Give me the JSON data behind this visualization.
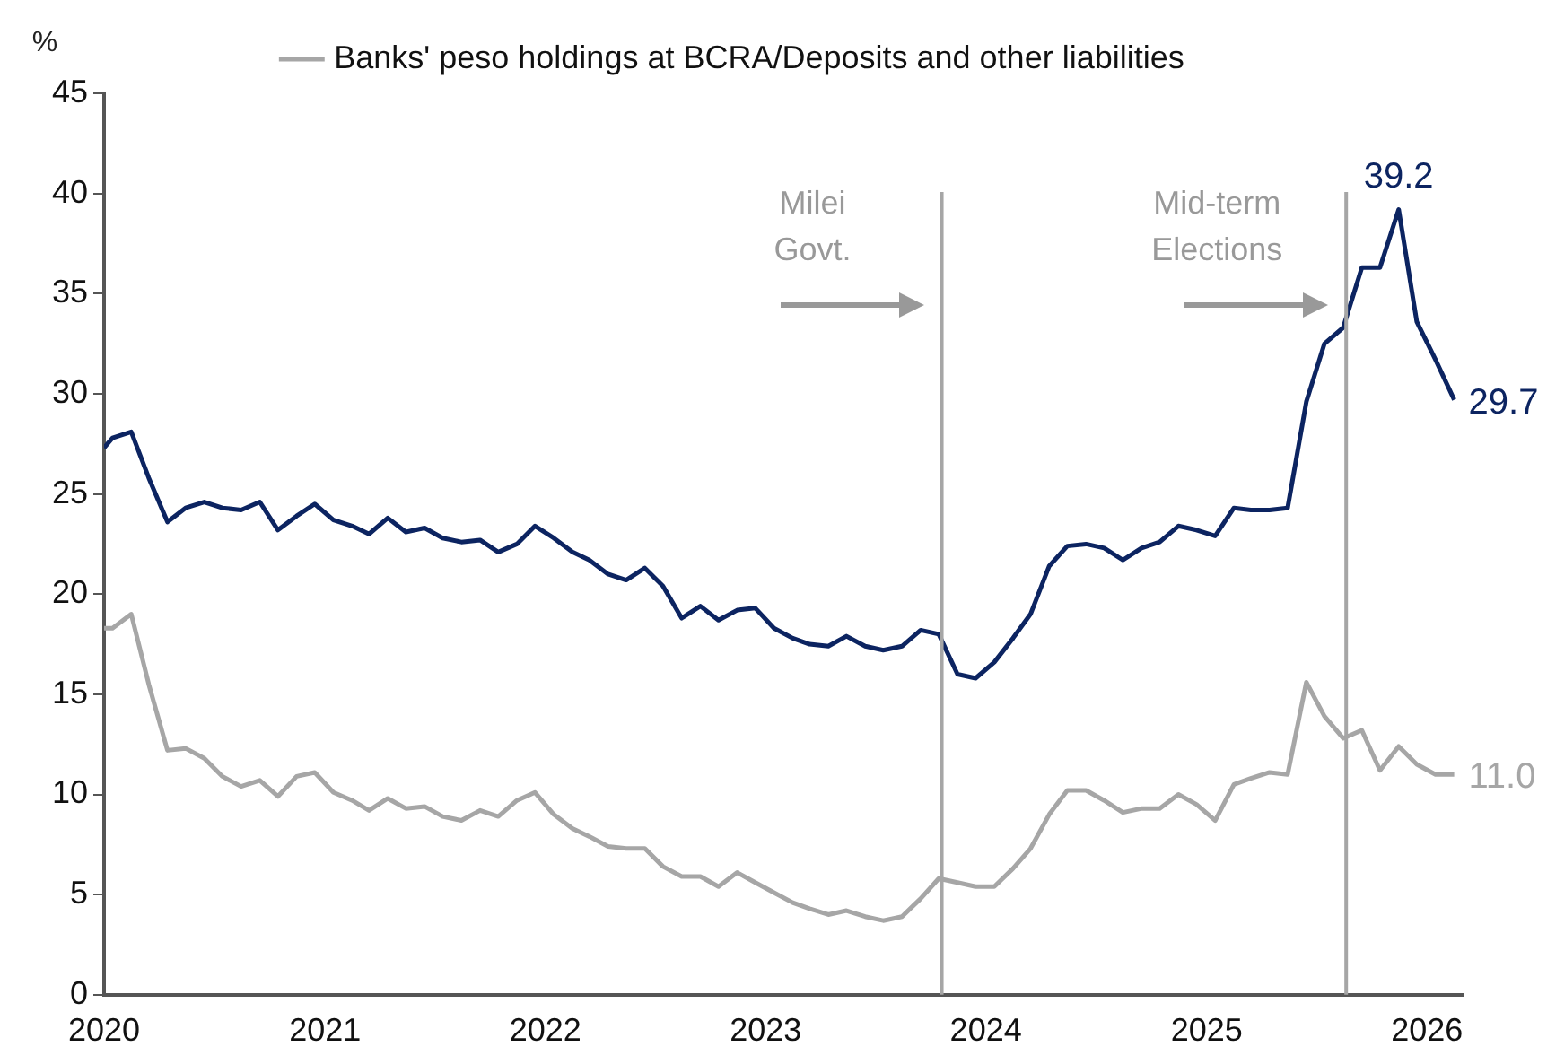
{
  "chart_data": {
    "type": "line",
    "ylabel": "%",
    "x": [
      "2020-01-01",
      "2020-01-15",
      "2020-02-15",
      "2020-03-15",
      "2020-04-15",
      "2020-05-15",
      "2020-06-15",
      "2020-07-15",
      "2020-08-15",
      "2020-09-15",
      "2020-10-15",
      "2020-11-15",
      "2020-12-15",
      "2021-01-15",
      "2021-02-15",
      "2021-03-15",
      "2021-04-15",
      "2021-05-15",
      "2021-06-15",
      "2021-07-15",
      "2021-08-15",
      "2021-09-15",
      "2021-10-15",
      "2021-11-15",
      "2021-12-15",
      "2022-01-15",
      "2022-02-15",
      "2022-03-15",
      "2022-04-15",
      "2022-05-15",
      "2022-06-15",
      "2022-07-15",
      "2022-08-15",
      "2022-09-15",
      "2022-10-15",
      "2022-11-15",
      "2022-12-15",
      "2023-01-15",
      "2023-02-15",
      "2023-03-15",
      "2023-04-15",
      "2023-05-15",
      "2023-06-15",
      "2023-07-15",
      "2023-08-15",
      "2023-09-15",
      "2023-10-15",
      "2023-11-15",
      "2023-12-15",
      "2024-01-15",
      "2024-02-15",
      "2024-03-15",
      "2024-04-15",
      "2024-05-15",
      "2024-06-15",
      "2024-07-15",
      "2024-08-15",
      "2024-09-15",
      "2024-10-15",
      "2024-11-15",
      "2024-12-15",
      "2025-01-15",
      "2025-02-15",
      "2025-03-15",
      "2025-04-15",
      "2025-05-15",
      "2025-06-15",
      "2025-07-15",
      "2025-08-15",
      "2025-09-15",
      "2025-10-15",
      "2025-11-15",
      "2025-12-15",
      "2026-01-15",
      "2026-02-15"
    ],
    "series": [
      {
        "color": "#0c2461",
        "values": [
          27.3,
          27.8,
          28.1,
          25.8,
          23.6,
          24.3,
          24.6,
          24.3,
          24.2,
          24.6,
          23.2,
          23.9,
          24.5,
          23.7,
          23.4,
          23.0,
          23.8,
          23.1,
          23.3,
          22.8,
          22.6,
          22.7,
          22.1,
          22.5,
          23.4,
          22.8,
          22.1,
          21.7,
          21.0,
          20.7,
          21.3,
          20.4,
          18.8,
          19.4,
          18.7,
          19.2,
          19.3,
          18.3,
          17.8,
          17.5,
          17.4,
          17.9,
          17.4,
          17.2,
          17.4,
          18.2,
          18.0,
          16.0,
          15.8,
          16.6,
          17.8,
          19.0,
          21.4,
          22.4,
          22.5,
          22.3,
          21.7,
          22.3,
          22.6,
          23.4,
          23.2,
          22.9,
          24.3,
          24.2,
          24.2,
          24.3,
          29.6,
          32.5,
          33.3,
          36.3,
          36.3,
          39.2,
          33.6,
          31.7,
          29.7
        ],
        "value_labels": [
          null,
          null,
          null,
          null,
          null,
          null,
          null,
          null,
          null,
          null,
          null,
          null,
          null,
          null,
          null,
          null,
          null,
          null,
          null,
          null,
          null,
          null,
          null,
          null,
          null,
          null,
          null,
          null,
          null,
          null,
          null,
          null,
          null,
          null,
          null,
          null,
          null,
          null,
          null,
          null,
          null,
          null,
          null,
          null,
          null,
          null,
          null,
          null,
          null,
          null,
          null,
          null,
          null,
          null,
          null,
          null,
          null,
          null,
          null,
          null,
          null,
          null,
          null,
          null,
          null,
          null,
          null,
          null,
          null,
          null,
          null,
          "39.2",
          null,
          null,
          "29.7"
        ]
      },
      {
        "name": "Banks' peso holdings at BCRA/Deposits and other liabilities",
        "color": "#a6a6a6",
        "values": [
          18.3,
          18.3,
          19.0,
          15.5,
          12.2,
          12.3,
          11.8,
          10.9,
          10.4,
          10.7,
          9.9,
          10.9,
          11.1,
          10.1,
          9.7,
          9.2,
          9.8,
          9.3,
          9.4,
          8.9,
          8.7,
          9.2,
          8.9,
          9.7,
          10.1,
          9.0,
          8.3,
          7.9,
          7.4,
          7.3,
          7.3,
          6.4,
          5.9,
          5.9,
          5.4,
          6.1,
          5.6,
          5.1,
          4.6,
          4.3,
          4.0,
          4.2,
          3.9,
          3.7,
          3.9,
          4.8,
          5.8,
          5.6,
          5.4,
          5.4,
          6.3,
          7.3,
          9.0,
          10.2,
          10.2,
          9.7,
          9.1,
          9.3,
          9.3,
          10.0,
          9.5,
          8.7,
          10.5,
          10.8,
          11.1,
          11.0,
          15.6,
          13.9,
          12.8,
          13.2,
          11.2,
          12.4,
          11.5,
          11.0,
          11.0
        ],
        "value_labels": [
          null,
          null,
          null,
          null,
          null,
          null,
          null,
          null,
          null,
          null,
          null,
          null,
          null,
          null,
          null,
          null,
          null,
          null,
          null,
          null,
          null,
          null,
          null,
          null,
          null,
          null,
          null,
          null,
          null,
          null,
          null,
          null,
          null,
          null,
          null,
          null,
          null,
          null,
          null,
          null,
          null,
          null,
          null,
          null,
          null,
          null,
          null,
          null,
          null,
          null,
          null,
          null,
          null,
          null,
          null,
          null,
          null,
          null,
          null,
          null,
          null,
          null,
          null,
          null,
          null,
          null,
          null,
          null,
          null,
          null,
          null,
          null,
          null,
          null,
          "11.0"
        ]
      }
    ],
    "xlim": [
      "2020-01-01",
      "2026-03-01"
    ],
    "xticks": [
      {
        "value": "2020",
        "label": "2020"
      },
      {
        "value": "2021",
        "label": "2021"
      },
      {
        "value": "2022",
        "label": "2022"
      },
      {
        "value": "2023",
        "label": "2023"
      },
      {
        "value": "2024",
        "label": "2024"
      },
      {
        "value": "2025",
        "label": "2025"
      },
      {
        "value": "2026",
        "label": "2026"
      }
    ],
    "ylim": [
      0,
      45
    ],
    "yticks": [
      0,
      5,
      10,
      15,
      20,
      25,
      30,
      35,
      40,
      45
    ],
    "ref_lines": [
      {
        "axis": "x",
        "value": "2023-10-20",
        "label": "Milei Govt.",
        "color": "#a6a6a6"
      },
      {
        "axis": "x",
        "value": "2025-08-20",
        "label": "Mid-term Elections",
        "color": "#a6a6a6"
      }
    ],
    "grid": false,
    "legend": "top",
    "marker": "none",
    "line_style": "solid"
  }
}
